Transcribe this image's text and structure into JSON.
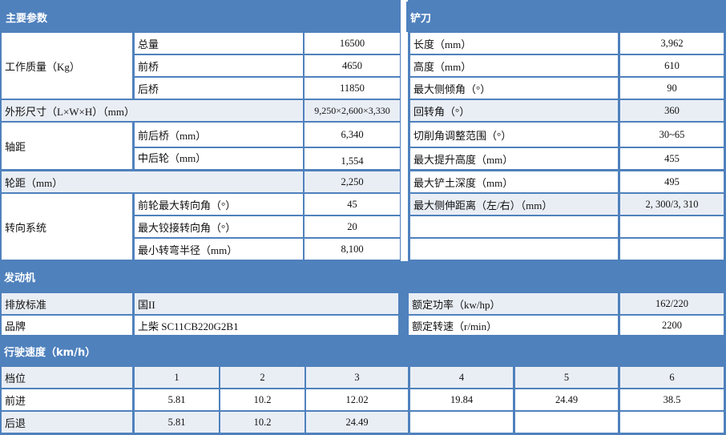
{
  "colors": {
    "header_bg": "#4f81bd",
    "shaded_row": "#e9eef5",
    "cell_bg": "#ffffff"
  },
  "main_params": {
    "title": "主要参数",
    "weight": {
      "label": "工作质量（Kg）",
      "rows": [
        {
          "label": "总量",
          "value": "16500"
        },
        {
          "label": "前桥",
          "value": "4650"
        },
        {
          "label": "后桥",
          "value": "11850"
        }
      ]
    },
    "dimensions": {
      "label": "外形尺寸（L×W×H）（mm）",
      "value": "9,250×2,600×3,330"
    },
    "wheelbase": {
      "label": "轴距",
      "rows": [
        {
          "label": "前后桥（mm）",
          "value": "6,340"
        },
        {
          "label": "中后轮（mm）",
          "value": "1,554"
        }
      ]
    },
    "track": {
      "label": "轮距（mm）",
      "value": "2,250"
    },
    "steering": {
      "label": "转向系统",
      "rows": [
        {
          "label": "前轮最大转向角（°）",
          "value": "45"
        },
        {
          "label": "最大铰接转向角（°）",
          "value": "20"
        },
        {
          "label": "最小转弯半径（mm）",
          "value": "8,100"
        }
      ]
    }
  },
  "blade": {
    "title": "铲刀",
    "rows": [
      {
        "label": "长度（mm）",
        "value": "3,962"
      },
      {
        "label": "高度（mm）",
        "value": "610"
      },
      {
        "label": "最大侧倾角（°）",
        "value": "90"
      },
      {
        "label": "回转角（°）",
        "value": "360"
      },
      {
        "label": "切削角调整范围（°）",
        "value": "30~65"
      },
      {
        "label": "最大提升高度（mm）",
        "value": "455"
      },
      {
        "label": "最大铲土深度（mm）",
        "value": "495"
      },
      {
        "label": "最大侧伸距离（左/右）（mm）",
        "value": "2, 300/3, 310"
      }
    ]
  },
  "engine": {
    "title": "发动机",
    "rows": [
      {
        "label": "排放标准",
        "value": "国II",
        "label2": "额定功率（kw/hp）",
        "value2": "162/220"
      },
      {
        "label": "品牌",
        "value": "上柴 SC11CB220G2B1",
        "label2": "额定转速（r/min）",
        "value2": "2200"
      }
    ]
  },
  "speed": {
    "title": "行驶速度（km/h）",
    "header": {
      "label": "档位",
      "values": [
        "1",
        "2",
        "3",
        "4",
        "5",
        "6"
      ]
    },
    "forward": {
      "label": "前进",
      "values": [
        "5.81",
        "10.2",
        "12.02",
        "19.84",
        "24.49",
        "38.5"
      ]
    },
    "reverse": {
      "label": "后退",
      "values": [
        "5.81",
        "10.2",
        "24.49",
        "",
        "",
        ""
      ]
    }
  }
}
